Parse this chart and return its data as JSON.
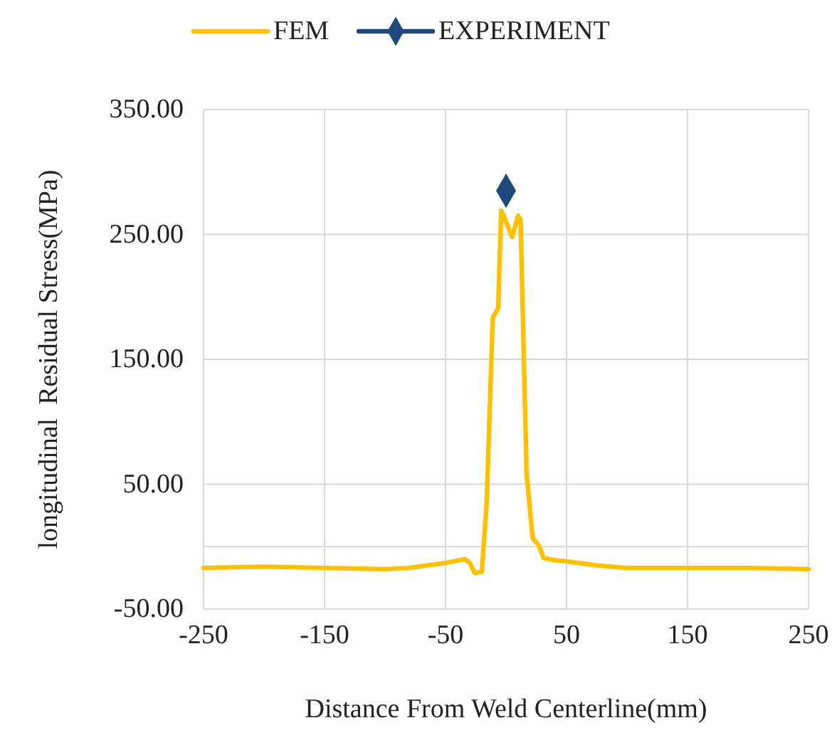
{
  "chart_data": {
    "type": "line",
    "xlabel": "Distance From Weld Centerline(mm)",
    "ylabel": "longitudinal  Residual Stress(MPa)",
    "xlim": [
      -250,
      250
    ],
    "xticks": [
      -250,
      -150,
      -50,
      50,
      150,
      250
    ],
    "ylim": [
      -50,
      350
    ],
    "yticks": [
      {
        "value": -50,
        "label": "-50.00"
      },
      {
        "value": 50,
        "label": "50.00"
      },
      {
        "value": 150,
        "label": "150.00"
      },
      {
        "value": 250,
        "label": "250.00"
      },
      {
        "value": 350,
        "label": "350.00"
      }
    ],
    "grid": true,
    "legend": "top",
    "line_style": "solid",
    "series": [
      {
        "name": "FEM",
        "color": "#ffc000",
        "marker": "none",
        "x": [
          -250,
          -200,
          -150,
          -100,
          -80,
          -65,
          -50,
          -34,
          -30,
          -26,
          -20,
          -16,
          -11,
          -6.5,
          -4,
          -2,
          5,
          10,
          12,
          17,
          22,
          27,
          31,
          41,
          52,
          75,
          99,
          150,
          200,
          250
        ],
        "values": [
          -17,
          -16,
          -17,
          -18,
          -17,
          -15,
          -13,
          -10,
          -13,
          -21,
          -20,
          35,
          183,
          191,
          269,
          265,
          248,
          265,
          262,
          58,
          7,
          1,
          -9,
          -11,
          -12,
          -15,
          -17,
          -17,
          -17,
          -18
        ]
      },
      {
        "name": "EXPERIMENT",
        "color": "#1f497d",
        "marker": "diamond",
        "x": [
          0
        ],
        "values": [
          285
        ]
      }
    ]
  }
}
